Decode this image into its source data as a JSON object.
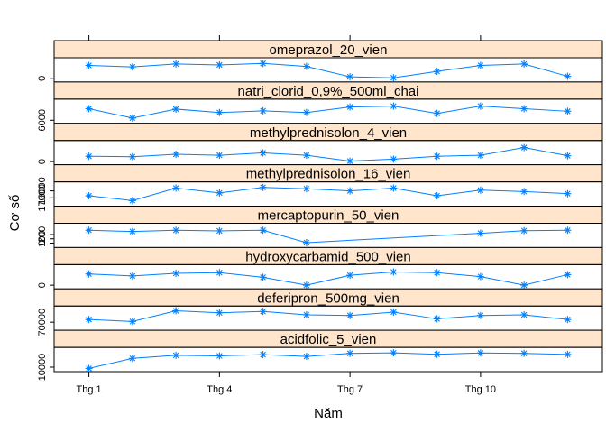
{
  "chart_data": {
    "type": "line",
    "layout": "lattice-stacked-panels",
    "xlabel": "Năm",
    "ylabel": "Cơ số",
    "x": [
      1,
      2,
      3,
      4,
      5,
      6,
      7,
      8,
      9,
      10,
      11,
      12
    ],
    "xticks": [
      {
        "value": 1,
        "label": "Thg 1"
      },
      {
        "value": 4,
        "label": "Thg 4"
      },
      {
        "value": 7,
        "label": "Thg 7"
      },
      {
        "value": 10,
        "label": "Thg 10"
      }
    ],
    "xlim": [
      0.2,
      12.8
    ],
    "panels": [
      {
        "name": "omeprazol_20_vien",
        "ylim": [
          -200,
          3600
        ],
        "yticks": [
          {
            "value": 0,
            "label": "0"
          }
        ],
        "values": [
          2600,
          2300,
          2900,
          2700,
          3000,
          2400,
          300,
          100,
          1400,
          2600,
          2900,
          400
        ]
      },
      {
        "name": "natri_clorid_0,9%_500ml_chai",
        "ylim": [
          5900,
          10300
        ],
        "yticks": [
          {
            "value": 6000,
            "label": "6000"
          }
        ],
        "values": [
          8700,
          6500,
          8600,
          7800,
          8200,
          7800,
          9100,
          9300,
          7600,
          9300,
          8700,
          8100
        ]
      },
      {
        "name": "methylprednisolon_4_vien",
        "ylim": [
          -100,
          3800
        ],
        "yticks": [
          {
            "value": 0,
            "label": "0"
          }
        ],
        "values": [
          1100,
          1000,
          1500,
          1300,
          1800,
          1300,
          100,
          500,
          1100,
          1300,
          2900,
          1200
        ]
      },
      {
        "name": "methylprednisolon_16_vien",
        "ylim": [
          16200,
          18900
        ],
        "yticks": [
          {
            "value": 17000,
            "label": "17000"
          },
          {
            "value": 18000,
            "label": "18000"
          }
        ],
        "values": [
          17300,
          16600,
          18400,
          17700,
          18500,
          18300,
          18000,
          18400,
          17300,
          18100,
          17900,
          17600
        ]
      },
      {
        "name": "mercaptopurin_50_vien",
        "ylim": [
          -40,
          400
        ],
        "yticks": [
          {
            "value": 0,
            "label": "0"
          },
          {
            "value": 100,
            "label": "100"
          },
          {
            "value": 200,
            "label": "200"
          }
        ],
        "values": [
          300,
          270,
          300,
          285,
          300,
          10,
          null,
          null,
          null,
          230,
          290,
          300
        ]
      },
      {
        "name": "hydroxycarbamid_500_vien",
        "ylim": [
          -150,
          2700
        ],
        "yticks": [
          {
            "value": 0,
            "label": "0"
          }
        ],
        "values": [
          1700,
          1400,
          1800,
          1900,
          1200,
          0,
          1500,
          2000,
          1900,
          1300,
          0,
          1600
        ]
      },
      {
        "name": "deferipron_500mg_vien",
        "ylim": [
          66000,
          80000
        ],
        "yticks": [
          {
            "value": 70000,
            "label": "70000"
          }
        ],
        "values": [
          72000,
          70500,
          78500,
          77000,
          78000,
          75500,
          75000,
          77500,
          72500,
          75000,
          75500,
          72000
        ]
      },
      {
        "name": "acidfolic_5_vien",
        "ylim": [
          9000,
          19500
        ],
        "yticks": [
          {
            "value": 10000,
            "label": "10000"
          }
        ],
        "values": [
          9300,
          14900,
          16600,
          16300,
          17000,
          16000,
          17700,
          18000,
          17200,
          17900,
          17700,
          17100
        ]
      }
    ],
    "colors": {
      "line": "#0080ff",
      "strip": "#ffe5cc",
      "frame": "#000000"
    },
    "marker": "asterisk",
    "grid": false
  }
}
